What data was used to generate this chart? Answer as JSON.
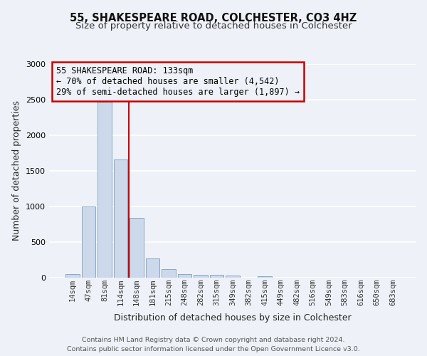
{
  "title": "55, SHAKESPEARE ROAD, COLCHESTER, CO3 4HZ",
  "subtitle": "Size of property relative to detached houses in Colchester",
  "xlabel": "Distribution of detached houses by size in Colchester",
  "ylabel": "Number of detached properties",
  "bar_labels": [
    "14sqm",
    "47sqm",
    "81sqm",
    "114sqm",
    "148sqm",
    "181sqm",
    "215sqm",
    "248sqm",
    "282sqm",
    "315sqm",
    "349sqm",
    "382sqm",
    "415sqm",
    "449sqm",
    "482sqm",
    "516sqm",
    "549sqm",
    "583sqm",
    "616sqm",
    "650sqm",
    "683sqm"
  ],
  "bar_values": [
    55,
    1000,
    2470,
    1660,
    840,
    270,
    120,
    55,
    40,
    40,
    35,
    0,
    20,
    0,
    0,
    0,
    0,
    0,
    0,
    0,
    0
  ],
  "bar_color": "#ccd9ea",
  "bar_edge_color": "#7a9dc0",
  "vline_color": "#cc0000",
  "vline_bar_index": 3,
  "annotation_text": "55 SHAKESPEARE ROAD: 133sqm\n← 70% of detached houses are smaller (4,542)\n29% of semi-detached houses are larger (1,897) →",
  "annotation_box_edge": "#cc0000",
  "ylim": [
    0,
    3000
  ],
  "yticks": [
    0,
    500,
    1000,
    1500,
    2000,
    2500,
    3000
  ],
  "footer_line1": "Contains HM Land Registry data © Crown copyright and database right 2024.",
  "footer_line2": "Contains public sector information licensed under the Open Government Licence v3.0.",
  "bg_color": "#eef2f8",
  "grid_color": "#ffffff",
  "title_fontsize": 10.5,
  "subtitle_fontsize": 9.5,
  "axis_label_fontsize": 9,
  "tick_fontsize": 7.5,
  "annotation_fontsize": 8.5,
  "footer_fontsize": 6.8
}
